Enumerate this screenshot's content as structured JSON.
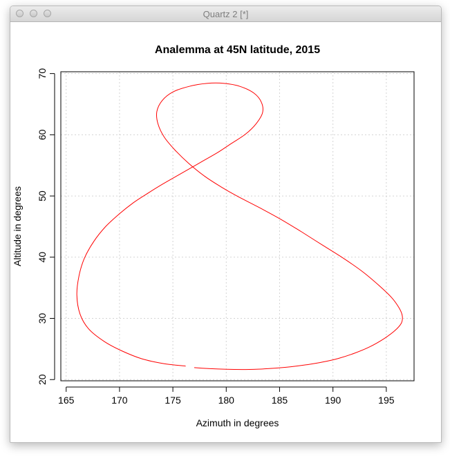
{
  "window": {
    "title": "Quartz 2 [*]"
  },
  "chart_data": {
    "type": "line",
    "title": "Analemma at 45N latitude, 2015",
    "xlabel": "Azimuth in degrees",
    "ylabel": "Altitude in degrees",
    "xlim": [
      164.5,
      197.6
    ],
    "ylim": [
      19.8,
      70.3
    ],
    "xticks": [
      165,
      170,
      175,
      180,
      185,
      190,
      195
    ],
    "yticks": [
      20,
      30,
      40,
      50,
      60,
      70
    ],
    "grid": true,
    "series_color": "#ff0000",
    "grid_color": "#d3d3d3",
    "series": [
      {
        "x": [
          177.0,
          178.5,
          180.0,
          181.5,
          183.0,
          184.5,
          186.0,
          187.5,
          189.0,
          190.5,
          192.0,
          193.5,
          194.8,
          195.8,
          196.4,
          196.5,
          196.2,
          195.5,
          194.3,
          192.8,
          191.0,
          189.0,
          187.0,
          185.0,
          183.0,
          181.0,
          179.5,
          178.0,
          176.5,
          175.2,
          174.2,
          173.6,
          173.5,
          174.0,
          175.0,
          176.5,
          178.2,
          179.8,
          181.3,
          182.6,
          183.3,
          183.4,
          182.8,
          181.8,
          180.5,
          179.2,
          177.9,
          176.6,
          175.3,
          174.0,
          172.7,
          171.3,
          170.0,
          168.7,
          167.6,
          166.7,
          166.2,
          166.0,
          166.3,
          167.1,
          168.5,
          170.2,
          172.1,
          174.2,
          176.2
        ],
        "y": [
          21.95,
          21.78,
          21.68,
          21.65,
          21.7,
          21.85,
          22.08,
          22.42,
          22.85,
          23.45,
          24.3,
          25.4,
          26.7,
          28.0,
          29.2,
          30.4,
          31.7,
          33.4,
          35.4,
          37.6,
          39.8,
          42.0,
          44.2,
          46.3,
          48.2,
          50.0,
          51.5,
          53.2,
          55.3,
          57.5,
          59.6,
          61.8,
          63.8,
          65.6,
          67.0,
          67.9,
          68.4,
          68.4,
          67.9,
          66.8,
          65.3,
          63.6,
          61.8,
          60.1,
          58.6,
          57.1,
          55.8,
          54.5,
          53.2,
          51.9,
          50.5,
          48.9,
          47.1,
          45.0,
          42.6,
          39.8,
          36.9,
          33.8,
          30.7,
          28.3,
          26.3,
          24.7,
          23.4,
          22.6,
          22.2
        ]
      }
    ]
  }
}
